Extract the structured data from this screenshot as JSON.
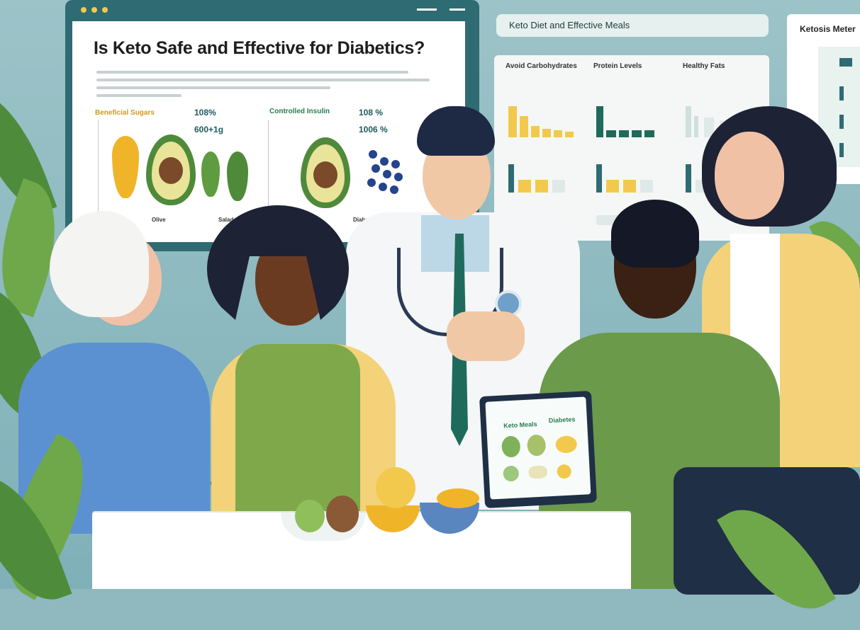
{
  "presentation": {
    "title": "Is Keto Safe and Effective for Diabetics?",
    "left_chart_label": "Beneficial Sugars",
    "left_value_1": "108%",
    "left_value_2": "600+1g",
    "mid_chart_label": "Controlled Insulin",
    "mid_value_1": "108 %",
    "mid_value_2": "1006 %",
    "foot_label_1": "Olive",
    "foot_label_2": "Salad",
    "foot_label_3": "Diabetic"
  },
  "dashboard": {
    "title": "Keto Diet and Effective Meals",
    "col1_title": "Avoid Carbohydrates",
    "col2_title": "Protein Levels",
    "col3_title": "Healthy Fats",
    "side_title": "Ketosis Meter"
  },
  "tablet": {
    "heading_left": "Keto Meals",
    "heading_right": "Diabetes"
  },
  "colors": {
    "teal": "#2f6b73",
    "accent_green": "#2a7d4f",
    "accent_yellow": "#f2c94c",
    "doctor_tie": "#1f6b5b"
  }
}
